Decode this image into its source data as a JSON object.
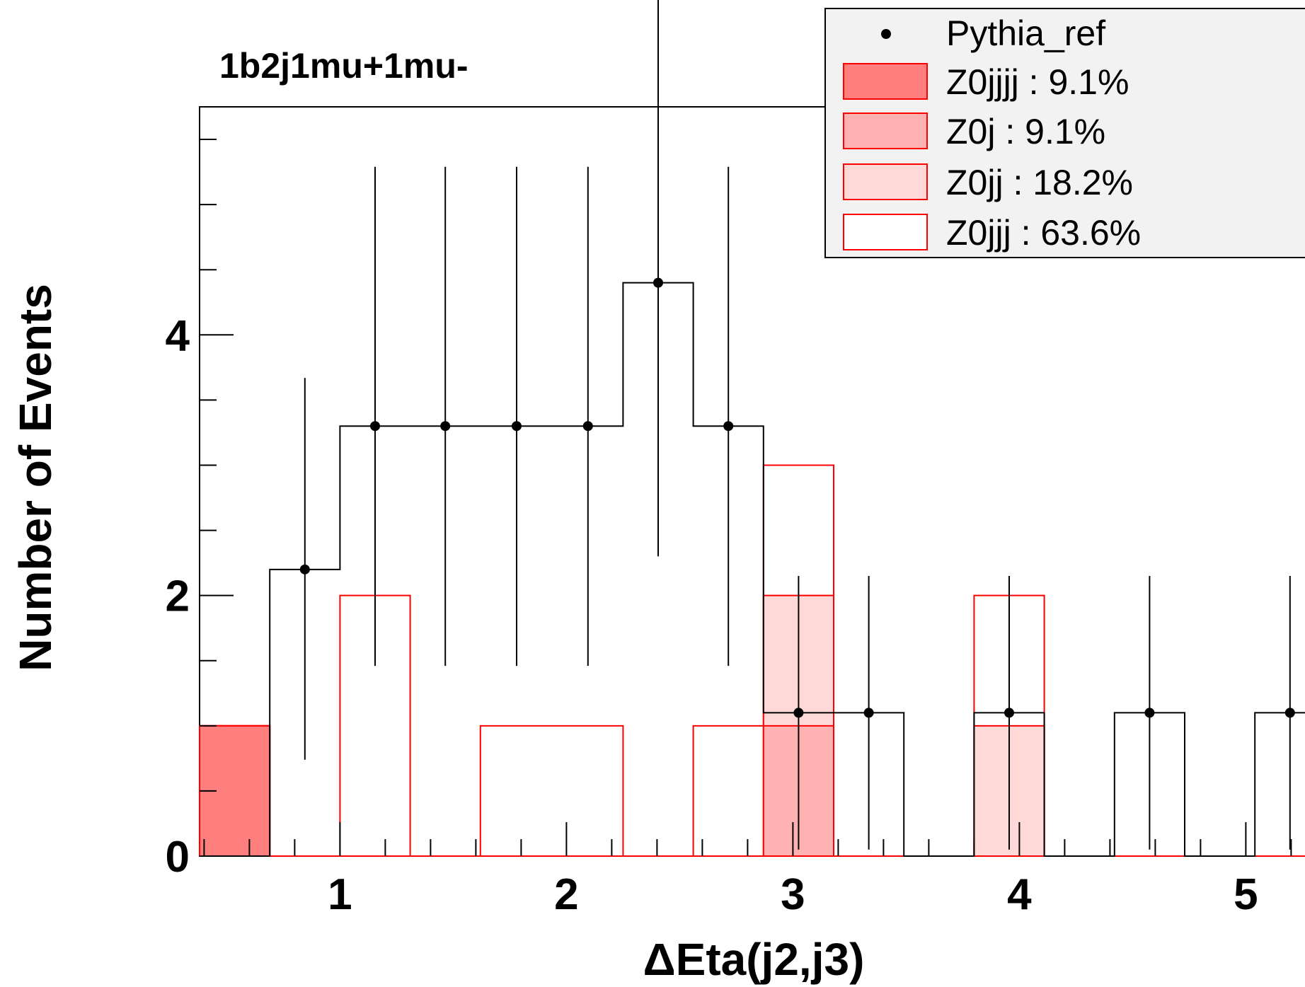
{
  "chart_data": {
    "type": "bar",
    "title": "1b2j1mu+1mu-",
    "xlabel": "ΔEta(j2,j3)",
    "ylabel": "Number of Events",
    "xlim": [
      0.38,
      5.38
    ],
    "ylim": [
      0,
      5.75
    ],
    "x_ticks": [
      "1",
      "2",
      "3",
      "4",
      "5"
    ],
    "y_ticks": [
      "0",
      "2",
      "4"
    ],
    "bin_edges": [
      0.38,
      0.69,
      1.0,
      1.31,
      1.62,
      1.94,
      2.25,
      2.56,
      2.87,
      3.18,
      3.49,
      3.8,
      4.11,
      4.42,
      4.73,
      5.04,
      5.35
    ],
    "stack": [
      {
        "name": "Z0jjjj : 9.1%",
        "fill": "#ff7f7f",
        "values": [
          1,
          0,
          0,
          0,
          0,
          0,
          0,
          0,
          0,
          0,
          0,
          0,
          0,
          0,
          0,
          0
        ]
      },
      {
        "name": "Z0j : 9.1%",
        "fill": "#ffb2b2",
        "values": [
          0,
          0,
          0,
          0,
          0,
          0,
          0,
          0,
          1,
          0,
          0,
          0,
          0,
          0,
          0,
          0
        ]
      },
      {
        "name": "Z0jj : 18.2%",
        "fill": "#ffd8d8",
        "values": [
          0,
          0,
          0,
          0,
          0,
          0,
          0,
          0,
          1,
          0,
          0,
          1,
          0,
          0,
          0,
          0
        ]
      },
      {
        "name": "Z0jjj : 63.6%",
        "fill": "#ffffff",
        "values": [
          0,
          0,
          2,
          0,
          1,
          1,
          0,
          1,
          1,
          0,
          0,
          1,
          0,
          0,
          0,
          0
        ]
      }
    ],
    "reference": {
      "name": "Pythia_ref",
      "values": [
        0,
        2.2,
        3.3,
        3.3,
        3.3,
        3.3,
        4.4,
        3.3,
        1.1,
        1.1,
        0,
        1.1,
        0,
        1.1,
        0,
        1.1
      ],
      "err_low": [
        0,
        1.46,
        1.84,
        1.84,
        1.84,
        1.84,
        2.1,
        1.84,
        1.05,
        1.05,
        0,
        1.05,
        0,
        1.05,
        0,
        1.05
      ],
      "err_high": [
        0,
        1.47,
        1.99,
        1.99,
        1.99,
        1.99,
        2.4,
        1.99,
        1.05,
        1.05,
        0,
        1.05,
        0,
        1.05,
        0,
        1.05
      ]
    },
    "legend_position": "top-right",
    "grid": false
  },
  "colors": {
    "reference": "#000000",
    "stack_outline": "#ff0000",
    "legend_bg": "#f2f2f2"
  }
}
